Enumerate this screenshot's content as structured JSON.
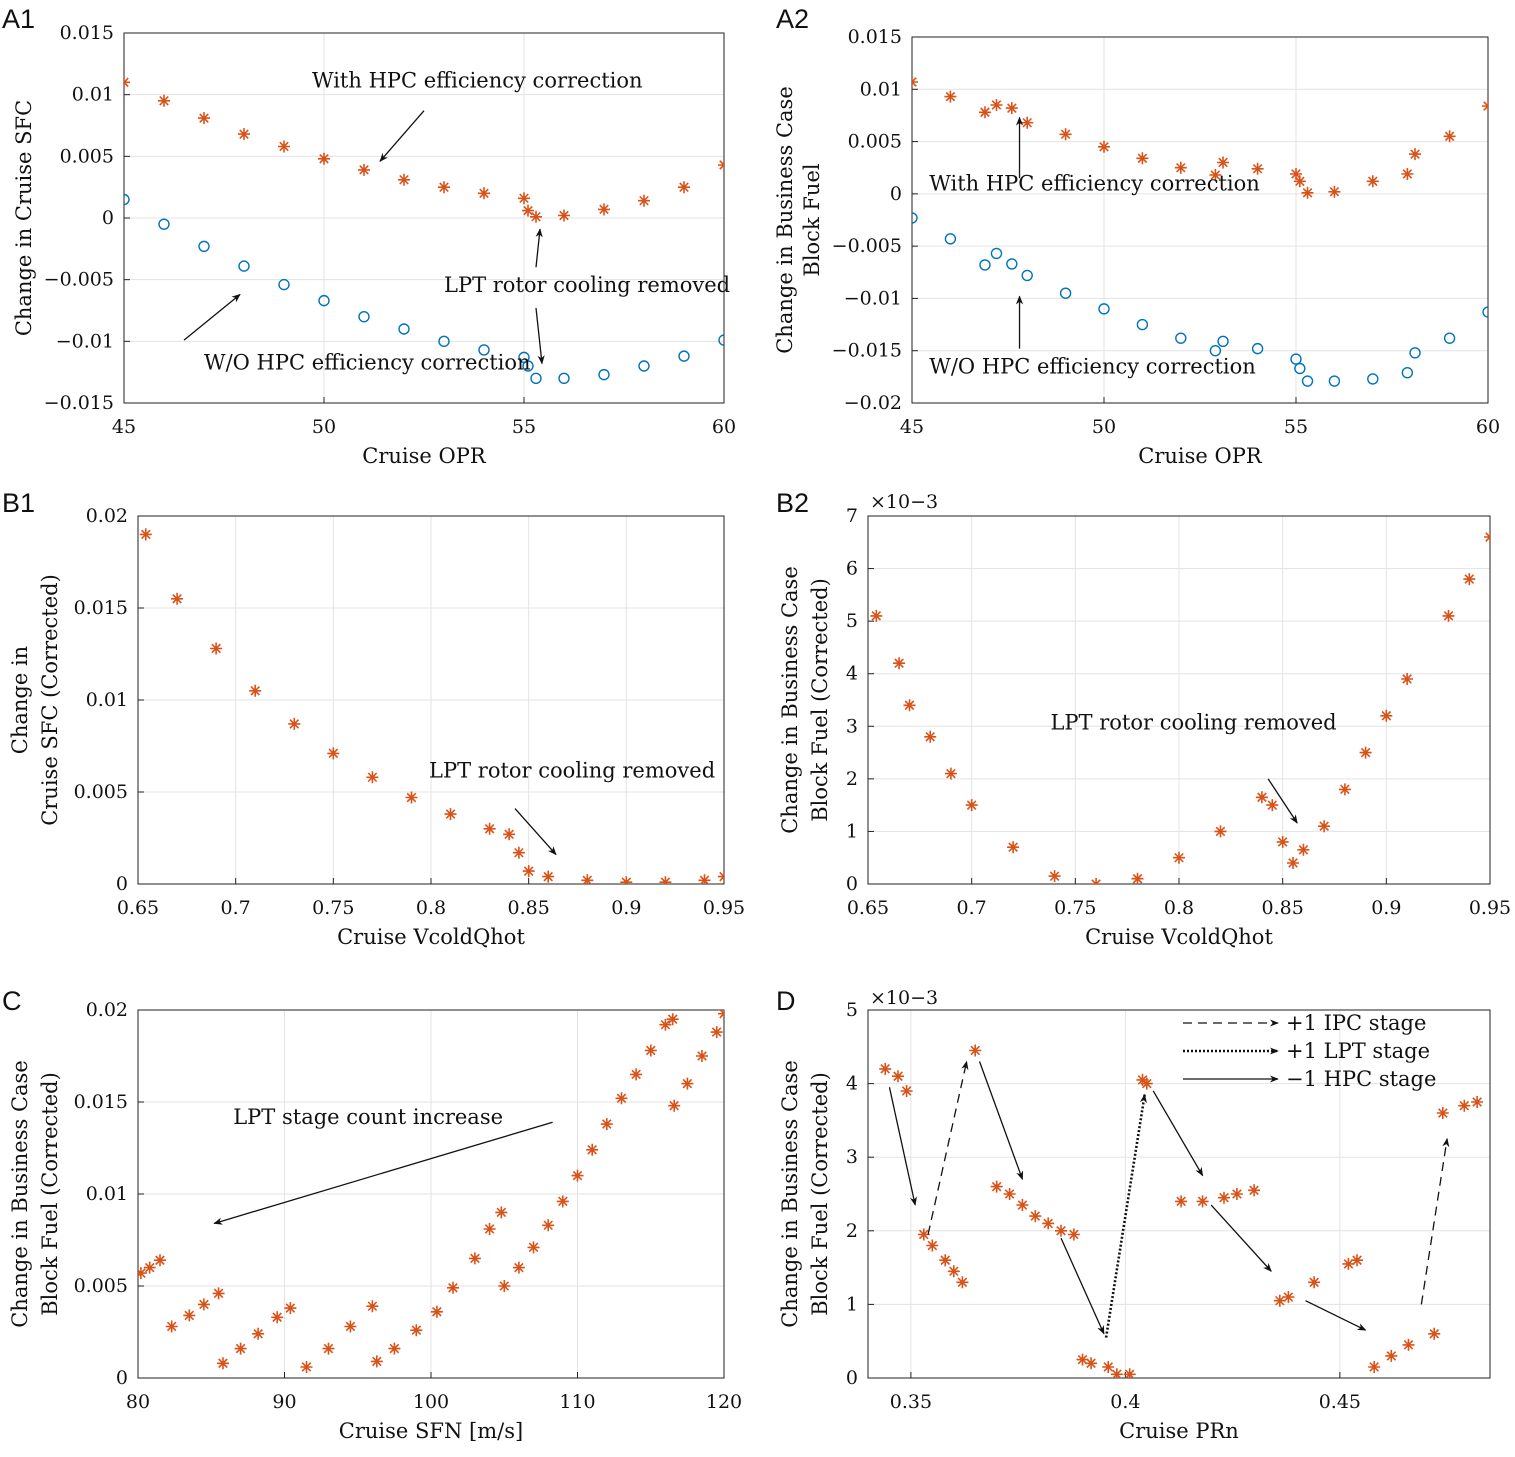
{
  "colors": {
    "orange": "#D95319",
    "blue": "#0072BD",
    "grid": "#e3e3e3",
    "axis": "#222222"
  },
  "chart_data": [
    {
      "id": "A1",
      "panel_label": "A1",
      "type": "scatter",
      "xlabel": "Cruise OPR",
      "ylabel": [
        "Change in Cruise SFC"
      ],
      "xlim": [
        45,
        60
      ],
      "ylim": [
        -0.015,
        0.015
      ],
      "xticks": [
        45,
        50,
        55,
        60
      ],
      "xtick_labels": [
        "45",
        "50",
        "55",
        "60"
      ],
      "yticks": [
        -0.015,
        -0.01,
        -0.005,
        0,
        0.005,
        0.01,
        0.015
      ],
      "ytick_labels": [
        "−0.015",
        "−0.01",
        "−0.005",
        "0",
        "0.005",
        "0.01",
        "0.015"
      ],
      "exponent": "",
      "series": [
        {
          "name": "With HPC efficiency correction",
          "marker": "star",
          "color": "#D95319",
          "x": [
            45,
            46,
            47,
            48,
            49,
            50,
            51,
            52,
            53,
            54,
            55,
            55.1,
            55.3,
            56,
            57,
            58,
            59,
            60
          ],
          "y": [
            0.011,
            0.0095,
            0.0081,
            0.0068,
            0.0058,
            0.0048,
            0.0039,
            0.0031,
            0.0025,
            0.002,
            0.0016,
            0.0006,
            0.0001,
            0.0002,
            0.0007,
            0.0014,
            0.0025,
            0.0043
          ]
        },
        {
          "name": "W/O HPC efficiency correction",
          "marker": "circle",
          "color": "#0072BD",
          "x": [
            45,
            46,
            47,
            48,
            49,
            50,
            51,
            52,
            53,
            54,
            55,
            55.1,
            55.3,
            56,
            57,
            58,
            59,
            60
          ],
          "y": [
            0.0015,
            -0.0005,
            -0.0023,
            -0.0039,
            -0.0054,
            -0.0067,
            -0.008,
            -0.009,
            -0.01,
            -0.0107,
            -0.0113,
            -0.012,
            -0.013,
            -0.013,
            -0.0127,
            -0.012,
            -0.0112,
            -0.0099
          ]
        }
      ],
      "annotations": [
        {
          "text": "With HPC efficiency correction",
          "x": 49.7,
          "y": 0.0106,
          "arrow_from": [
            52.5,
            0.0087
          ],
          "arrow_to": [
            51.4,
            0.0046
          ]
        },
        {
          "text": "LPT rotor cooling removed",
          "x": 53,
          "y": -0.006,
          "arrow_from": [
            55.3,
            -0.004
          ],
          "arrow_to": [
            55.4,
            -0.0009
          ]
        },
        {
          "text": "",
          "x": 0,
          "y": 0,
          "arrow_from": [
            55.3,
            -0.0073
          ],
          "arrow_to": [
            55.45,
            -0.0118
          ]
        },
        {
          "text": "W/O HPC efficiency correction",
          "x": 47,
          "y": -0.0123,
          "arrow_from": [
            46.5,
            -0.0099
          ],
          "arrow_to": [
            47.9,
            -0.0062
          ]
        }
      ]
    },
    {
      "id": "A2",
      "panel_label": "A2",
      "type": "scatter",
      "xlabel": "Cruise OPR",
      "ylabel": [
        "Change in Business Case",
        "Block Fuel"
      ],
      "xlim": [
        45,
        60
      ],
      "ylim": [
        -0.02,
        0.015
      ],
      "xticks": [
        45,
        50,
        55,
        60
      ],
      "xtick_labels": [
        "45",
        "50",
        "55",
        "60"
      ],
      "yticks": [
        -0.02,
        -0.015,
        -0.01,
        -0.005,
        0,
        0.005,
        0.01,
        0.015
      ],
      "ytick_labels": [
        "−0.02",
        "−0.015",
        "−0.01",
        "−0.005",
        "0",
        "0.005",
        "0.01",
        "0.015"
      ],
      "exponent": "",
      "series": [
        {
          "name": "With HPC efficiency correction",
          "marker": "star",
          "color": "#D95319",
          "x": [
            45,
            46,
            46.9,
            47.2,
            47.6,
            48,
            49,
            50,
            51,
            52,
            52.9,
            53.1,
            54,
            55,
            55.1,
            55.3,
            56,
            57,
            57.9,
            58.1,
            59,
            60
          ],
          "y": [
            0.0107,
            0.0093,
            0.0078,
            0.0085,
            0.0082,
            0.0068,
            0.0057,
            0.0045,
            0.0034,
            0.0025,
            0.0018,
            0.003,
            0.0024,
            0.0019,
            0.0012,
            0.0001,
            0.0002,
            0.0012,
            0.0019,
            0.0038,
            0.0055,
            0.0084
          ]
        },
        {
          "name": "W/O HPC efficiency correction",
          "marker": "circle",
          "color": "#0072BD",
          "x": [
            45,
            46,
            46.9,
            47.2,
            47.6,
            48,
            49,
            50,
            51,
            52,
            52.9,
            53.1,
            54,
            55,
            55.1,
            55.3,
            56,
            57,
            57.9,
            58.1,
            59,
            60
          ],
          "y": [
            -0.0023,
            -0.0043,
            -0.0068,
            -0.0057,
            -0.0067,
            -0.0078,
            -0.0095,
            -0.011,
            -0.0125,
            -0.0138,
            -0.015,
            -0.0141,
            -0.0148,
            -0.0158,
            -0.0167,
            -0.0179,
            -0.0179,
            -0.0177,
            -0.0171,
            -0.0152,
            -0.0138,
            -0.0113
          ]
        }
      ],
      "annotations": [
        {
          "text": "With HPC efficiency correction",
          "x": 45.45,
          "y": 0.0003,
          "arrow_from": [
            47.8,
            0.0015
          ],
          "arrow_to": [
            47.8,
            0.0073
          ]
        },
        {
          "text": "W/O HPC efficiency correction",
          "x": 45.45,
          "y": -0.0172,
          "arrow_from": [
            47.8,
            -0.0148
          ],
          "arrow_to": [
            47.8,
            -0.0098
          ]
        }
      ]
    },
    {
      "id": "B1",
      "panel_label": "B1",
      "type": "scatter",
      "xlabel": "Cruise VcoldQhot",
      "ylabel": [
        "Change in",
        "Cruise SFC (Corrected)"
      ],
      "xlim": [
        0.65,
        0.95
      ],
      "ylim": [
        0,
        0.02
      ],
      "xticks": [
        0.65,
        0.7,
        0.75,
        0.8,
        0.85,
        0.9,
        0.95
      ],
      "xtick_labels": [
        "0.65",
        "0.7",
        "0.75",
        "0.8",
        "0.85",
        "0.9",
        "0.95"
      ],
      "yticks": [
        0,
        0.005,
        0.01,
        0.015,
        0.02
      ],
      "ytick_labels": [
        "0",
        "0.005",
        "0.01",
        "0.015",
        "0.02"
      ],
      "exponent": "",
      "series": [
        {
          "name": "",
          "marker": "star",
          "color": "#D95319",
          "x": [
            0.654,
            0.67,
            0.69,
            0.71,
            0.73,
            0.75,
            0.77,
            0.79,
            0.81,
            0.83,
            0.84,
            0.845,
            0.85,
            0.86,
            0.88,
            0.9,
            0.92,
            0.94,
            0.95
          ],
          "y": [
            0.019,
            0.0155,
            0.0128,
            0.0105,
            0.0087,
            0.0071,
            0.0058,
            0.0047,
            0.0038,
            0.003,
            0.0027,
            0.0017,
            0.0007,
            0.0004,
            0.0002,
            0.0001,
            0.0001,
            0.0002,
            0.0004
          ]
        }
      ],
      "annotations": [
        {
          "text": "LPT rotor cooling removed",
          "x": 0.799,
          "y": 0.0058,
          "arrow_from": [
            0.843,
            0.0041
          ],
          "arrow_to": [
            0.864,
            0.0016
          ]
        }
      ]
    },
    {
      "id": "B2",
      "panel_label": "B2",
      "type": "scatter",
      "xlabel": "Cruise VcoldQhot",
      "ylabel": [
        "Change in Business Case",
        "Block Fuel (Corrected)"
      ],
      "xlim": [
        0.65,
        0.95
      ],
      "ylim": [
        0,
        7
      ],
      "xticks": [
        0.65,
        0.7,
        0.75,
        0.8,
        0.85,
        0.9,
        0.95
      ],
      "xtick_labels": [
        "0.65",
        "0.7",
        "0.75",
        "0.8",
        "0.85",
        "0.9",
        "0.95"
      ],
      "yticks": [
        0,
        1,
        2,
        3,
        4,
        5,
        6,
        7
      ],
      "ytick_labels": [
        "0",
        "1",
        "2",
        "3",
        "4",
        "5",
        "6",
        "7"
      ],
      "exponent": "×10−3",
      "series": [
        {
          "name": "",
          "marker": "star",
          "color": "#D95319",
          "x": [
            0.654,
            0.665,
            0.67,
            0.68,
            0.69,
            0.7,
            0.72,
            0.74,
            0.76,
            0.78,
            0.8,
            0.82,
            0.84,
            0.845,
            0.85,
            0.855,
            0.86,
            0.87,
            0.88,
            0.89,
            0.9,
            0.91,
            0.93,
            0.94,
            0.95
          ],
          "y": [
            5.1,
            4.2,
            3.4,
            2.8,
            2.1,
            1.5,
            0.7,
            0.15,
            0,
            0.1,
            0.5,
            1.0,
            1.65,
            1.5,
            0.8,
            0.4,
            0.65,
            1.1,
            1.8,
            2.5,
            3.2,
            3.9,
            5.1,
            5.8,
            6.6
          ]
        }
      ],
      "annotations": [
        {
          "text": "LPT rotor cooling removed",
          "x": 0.738,
          "y": 2.94,
          "arrow_from": [
            0.843,
            2.0
          ],
          "arrow_to": [
            0.857,
            1.16
          ]
        }
      ]
    },
    {
      "id": "C",
      "panel_label": "C",
      "type": "scatter",
      "xlabel": "Cruise SFN [m/s]",
      "ylabel": [
        "Change in Business Case",
        "Block Fuel (Corrected)"
      ],
      "xlim": [
        80,
        120
      ],
      "ylim": [
        0,
        0.02
      ],
      "xticks": [
        80,
        90,
        100,
        110,
        120
      ],
      "xtick_labels": [
        "80",
        "90",
        "100",
        "110",
        "120"
      ],
      "yticks": [
        0,
        0.005,
        0.01,
        0.015,
        0.02
      ],
      "ytick_labels": [
        "0",
        "0.005",
        "0.01",
        "0.015",
        "0.02"
      ],
      "exponent": "",
      "series": [
        {
          "name": "",
          "marker": "star",
          "color": "#D95319",
          "x": [
            80.2,
            80.8,
            81.5,
            82.3,
            83.5,
            84.5,
            85.5,
            85.8,
            87,
            88.2,
            89.5,
            90.4,
            91.5,
            93,
            94.5,
            96,
            96.3,
            97.5,
            99,
            100.4,
            101.5,
            103,
            104,
            104.8,
            105,
            106,
            107,
            108,
            109,
            110,
            111,
            112,
            113,
            114,
            115,
            116,
            116.5,
            116.6,
            117.5,
            118.5,
            119.5,
            120
          ],
          "y": [
            0.0057,
            0.006,
            0.0064,
            0.0028,
            0.0034,
            0.004,
            0.0046,
            0.0008,
            0.0016,
            0.0024,
            0.0033,
            0.0038,
            0.0006,
            0.0016,
            0.0028,
            0.0039,
            0.0009,
            0.0016,
            0.0026,
            0.0036,
            0.0049,
            0.0065,
            0.0081,
            0.009,
            0.005,
            0.006,
            0.0071,
            0.0083,
            0.0096,
            0.011,
            0.0124,
            0.0138,
            0.0152,
            0.0165,
            0.0178,
            0.0192,
            0.0195,
            0.0148,
            0.016,
            0.0175,
            0.0188,
            0.0198
          ]
        }
      ],
      "annotations": [
        {
          "text": "LPT stage count increase",
          "x": 86.5,
          "y": 0.0138,
          "arrow_from": [
            108.3,
            0.0139
          ],
          "arrow_to": [
            85.2,
            0.0084
          ]
        }
      ]
    },
    {
      "id": "D",
      "panel_label": "D",
      "type": "scatter",
      "xlabel": "Cruise PRn",
      "ylabel": [
        "Change in Business Case",
        "Block Fuel (Corrected)"
      ],
      "xlim": [
        0.34,
        0.485
      ],
      "ylim": [
        0,
        5
      ],
      "xticks": [
        0.35,
        0.4,
        0.45
      ],
      "xtick_labels": [
        "0.35",
        "0.4",
        "0.45"
      ],
      "yticks": [
        0,
        1,
        2,
        3,
        4,
        5
      ],
      "ytick_labels": [
        "0",
        "1",
        "2",
        "3",
        "4",
        "5"
      ],
      "exponent": "×10−3",
      "series": [
        {
          "name": "",
          "marker": "star",
          "color": "#D95319",
          "x": [
            0.344,
            0.347,
            0.349,
            0.353,
            0.355,
            0.358,
            0.36,
            0.362,
            0.365,
            0.37,
            0.373,
            0.376,
            0.379,
            0.382,
            0.385,
            0.388,
            0.39,
            0.392,
            0.396,
            0.398,
            0.401,
            0.404,
            0.405,
            0.413,
            0.418,
            0.423,
            0.426,
            0.43,
            0.436,
            0.438,
            0.444,
            0.452,
            0.454,
            0.458,
            0.462,
            0.466,
            0.472,
            0.474,
            0.479,
            0.482
          ],
          "y": [
            4.2,
            4.1,
            3.9,
            1.95,
            1.8,
            1.6,
            1.45,
            1.3,
            4.45,
            2.6,
            2.5,
            2.35,
            2.2,
            2.1,
            2.0,
            1.95,
            0.25,
            0.2,
            0.15,
            0.05,
            0.05,
            4.05,
            4.0,
            2.4,
            2.4,
            2.45,
            2.5,
            2.55,
            1.05,
            1.1,
            1.3,
            1.55,
            1.6,
            0.15,
            0.3,
            0.45,
            0.6,
            3.6,
            3.7,
            3.75
          ]
        }
      ],
      "legend": [
        {
          "label": "+1 IPC stage",
          "style": "dashed"
        },
        {
          "label": "+1 LPT stage",
          "style": "dotted"
        },
        {
          "label": "−1 HPC stage",
          "style": "solid"
        }
      ],
      "transitions": [
        {
          "style": "solid",
          "from": [
            0.345,
            3.95
          ],
          "to": [
            0.351,
            2.35
          ]
        },
        {
          "style": "dashed",
          "from": [
            0.354,
            1.95
          ],
          "to": [
            0.363,
            4.3
          ]
        },
        {
          "style": "solid",
          "from": [
            0.366,
            4.3
          ],
          "to": [
            0.376,
            2.7
          ]
        },
        {
          "style": "solid",
          "from": [
            0.385,
            1.9
          ],
          "to": [
            0.395,
            0.6
          ]
        },
        {
          "style": "dotted",
          "from": [
            0.3955,
            0.55
          ],
          "to": [
            0.4045,
            3.85
          ]
        },
        {
          "style": "solid",
          "from": [
            0.4065,
            3.9
          ],
          "to": [
            0.418,
            2.75
          ]
        },
        {
          "style": "solid",
          "from": [
            0.42,
            2.35
          ],
          "to": [
            0.434,
            1.45
          ]
        },
        {
          "style": "solid",
          "from": [
            0.442,
            1.05
          ],
          "to": [
            0.456,
            0.65
          ]
        },
        {
          "style": "dashed",
          "from": [
            0.469,
            1.0
          ],
          "to": [
            0.475,
            3.25
          ]
        }
      ]
    }
  ]
}
